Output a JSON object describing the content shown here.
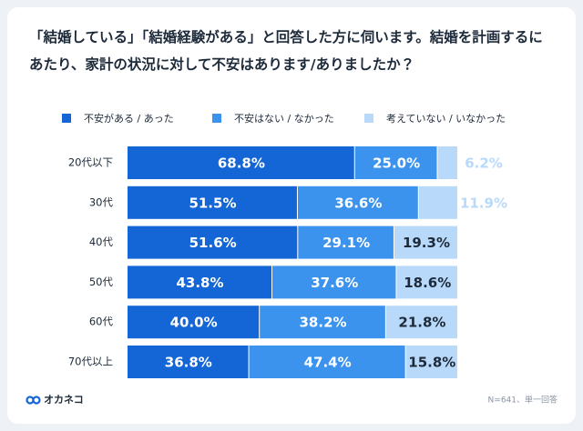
{
  "chart_data": {
    "type": "stacked-bar-horizontal",
    "title": "「結婚している」「結婚経験がある」と回答した方に伺います。結婚を計画するにあたり、家計の状況に対して不安はあります/ありましたか？",
    "categories": [
      "20代以下",
      "30代",
      "40代",
      "50代",
      "60代",
      "70代以上"
    ],
    "series": [
      {
        "name": "不安がある / あった",
        "color": "#1466d6",
        "values": [
          68.8,
          51.5,
          51.6,
          43.8,
          40.0,
          36.8
        ],
        "value_labels": [
          "68.8%",
          "51.5%",
          "51.6%",
          "43.8%",
          "40.0%",
          "36.8%"
        ]
      },
      {
        "name": "不安はない / なかった",
        "color": "#3c93ee",
        "values": [
          25.0,
          36.6,
          29.1,
          37.6,
          38.2,
          47.4
        ],
        "value_labels": [
          "25.0%",
          "36.6%",
          "29.1%",
          "37.6%",
          "38.2%",
          "47.4%"
        ]
      },
      {
        "name": "考えていない / いなかった",
        "color": "#b9d9fb",
        "values": [
          6.2,
          11.9,
          19.3,
          18.6,
          21.8,
          15.8
        ],
        "value_labels": [
          "6.2%",
          "11.9%",
          "19.3%",
          "18.6%",
          "21.8%",
          "15.8%"
        ]
      }
    ],
    "xlim": [
      0,
      100
    ],
    "note": "N=641、単一回答",
    "brand": "オカネコ"
  }
}
